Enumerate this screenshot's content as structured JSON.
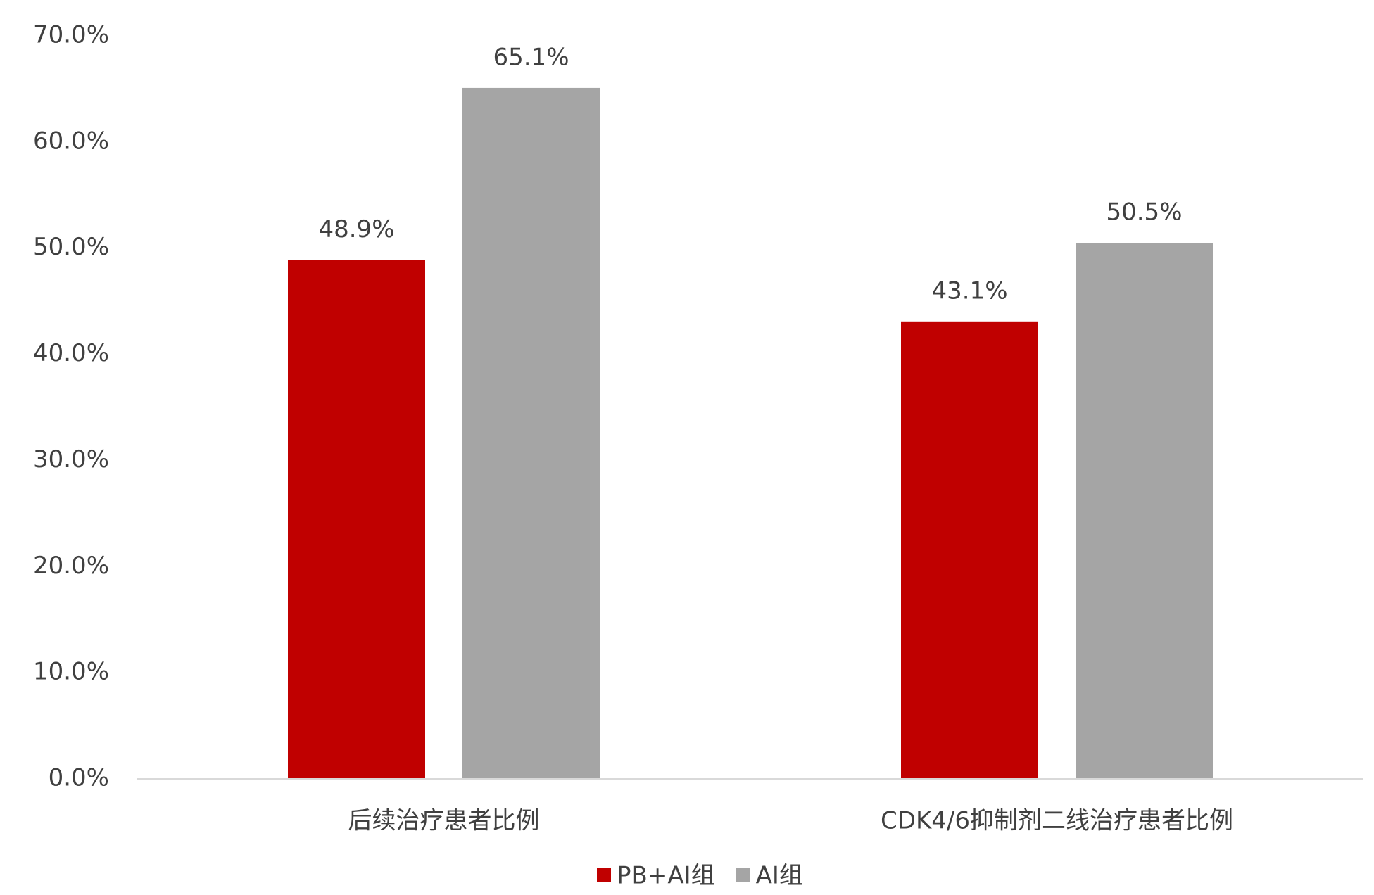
{
  "chart_data": {
    "type": "bar",
    "categories": [
      "后续治疗患者比例",
      "CDK4/6抑制剂二线治疗患者比例"
    ],
    "series": [
      {
        "name": "PB+AI组",
        "color": "#c00000",
        "values": [
          48.9,
          43.1
        ],
        "value_labels": [
          "48.9%",
          "43.1%"
        ]
      },
      {
        "name": "AI组",
        "color": "#a5a5a5",
        "values": [
          65.1,
          50.5
        ],
        "value_labels": [
          "65.1%",
          "50.5%"
        ]
      }
    ],
    "ylim": [
      0,
      70
    ],
    "yticks": [
      {
        "value": 0,
        "label": "0.0%"
      },
      {
        "value": 10,
        "label": "10.0%"
      },
      {
        "value": 20,
        "label": "20.0%"
      },
      {
        "value": 30,
        "label": "30.0%"
      },
      {
        "value": 40,
        "label": "40.0%"
      },
      {
        "value": 50,
        "label": "50.0%"
      },
      {
        "value": 60,
        "label": "60.0%"
      },
      {
        "value": 70,
        "label": "70.0%"
      }
    ],
    "grid": false,
    "legend": "bottom"
  }
}
